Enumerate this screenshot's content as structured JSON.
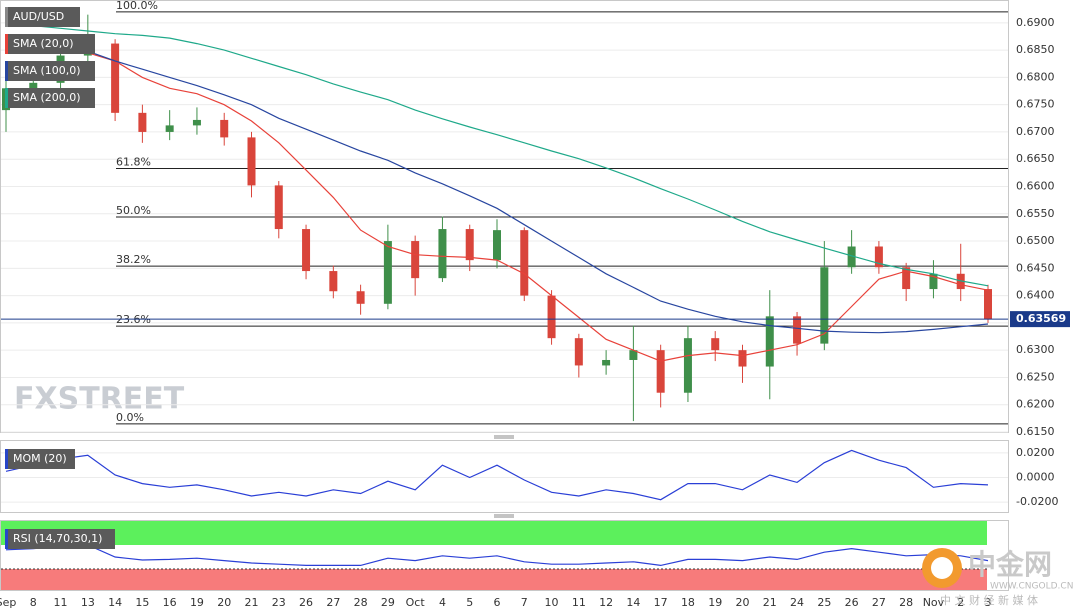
{
  "chart_data": [
    {
      "type": "candlestick",
      "title": "AUD/USD",
      "watermark": "FXSTREET",
      "categories": [
        "Sep",
        "8",
        "11",
        "13",
        "14",
        "15",
        "16",
        "19",
        "20",
        "21",
        "23",
        "26",
        "27",
        "28",
        "29",
        "Oct",
        "4",
        "5",
        "6",
        "7",
        "10",
        "11",
        "12",
        "14",
        "17",
        "18",
        "19",
        "20",
        "21",
        "24",
        "25",
        "26",
        "27",
        "28",
        "Nov",
        "2",
        "3"
      ],
      "open": [
        0.674,
        0.678,
        0.679,
        0.684,
        0.6862,
        0.6735,
        0.67,
        0.6712,
        0.6722,
        0.669,
        0.6602,
        0.6522,
        0.6445,
        0.6408,
        0.6385,
        0.65,
        0.6432,
        0.6522,
        0.6465,
        0.652,
        0.64,
        0.6322,
        0.6272,
        0.6282,
        0.63,
        0.6222,
        0.6322,
        0.63,
        0.627,
        0.6362,
        0.6312,
        0.6452,
        0.649,
        0.6452,
        0.6412,
        0.644,
        0.6412
      ],
      "high": [
        0.68,
        0.681,
        0.686,
        0.6915,
        0.687,
        0.675,
        0.674,
        0.6745,
        0.6735,
        0.67,
        0.661,
        0.653,
        0.6455,
        0.642,
        0.653,
        0.651,
        0.6545,
        0.653,
        0.654,
        0.6525,
        0.641,
        0.633,
        0.63,
        0.6345,
        0.631,
        0.6345,
        0.6335,
        0.631,
        0.641,
        0.637,
        0.65,
        0.652,
        0.65,
        0.646,
        0.6465,
        0.6495,
        0.642
      ],
      "low": [
        0.67,
        0.676,
        0.6775,
        0.682,
        0.672,
        0.668,
        0.6685,
        0.6695,
        0.6675,
        0.658,
        0.6505,
        0.643,
        0.6395,
        0.6365,
        0.6375,
        0.64,
        0.6425,
        0.6445,
        0.645,
        0.639,
        0.631,
        0.625,
        0.6255,
        0.617,
        0.6195,
        0.6205,
        0.628,
        0.624,
        0.621,
        0.629,
        0.63,
        0.644,
        0.644,
        0.639,
        0.6395,
        0.639,
        0.635
      ],
      "close": [
        0.678,
        0.679,
        0.684,
        0.6862,
        0.6735,
        0.67,
        0.6712,
        0.6722,
        0.669,
        0.6602,
        0.6522,
        0.6445,
        0.6408,
        0.6385,
        0.65,
        0.6432,
        0.6522,
        0.6465,
        0.652,
        0.64,
        0.6322,
        0.6272,
        0.6282,
        0.63,
        0.6222,
        0.6322,
        0.63,
        0.627,
        0.6362,
        0.6312,
        0.6452,
        0.649,
        0.6452,
        0.6412,
        0.644,
        0.6412,
        0.63569
      ],
      "up_color": "#3f8f4a",
      "down_color": "#d9453b",
      "series": [
        {
          "name": "SMA (20,0)",
          "color": "#e8423a",
          "values": [
            null,
            null,
            null,
            0.6845,
            0.683,
            0.68,
            0.678,
            0.677,
            0.675,
            0.672,
            0.668,
            0.663,
            0.658,
            0.652,
            0.649,
            0.6475,
            0.6472,
            0.647,
            0.6465,
            0.644,
            0.64,
            0.636,
            0.632,
            0.63,
            0.628,
            0.629,
            0.6295,
            0.629,
            0.63,
            0.631,
            0.633,
            0.638,
            0.643,
            0.6445,
            0.6435,
            0.642,
            0.641
          ]
        },
        {
          "name": "SMA (100,0)",
          "color": "#2846a0",
          "values": [
            0.686,
            0.6855,
            0.6852,
            0.6848,
            0.683,
            0.6815,
            0.68,
            0.6785,
            0.6768,
            0.675,
            0.6725,
            0.6705,
            0.6685,
            0.6665,
            0.6648,
            0.6625,
            0.6605,
            0.6583,
            0.656,
            0.653,
            0.65,
            0.647,
            0.644,
            0.6415,
            0.639,
            0.6375,
            0.6362,
            0.6352,
            0.6345,
            0.634,
            0.6335,
            0.6333,
            0.6332,
            0.6334,
            0.6338,
            0.6343,
            0.6348
          ]
        },
        {
          "name": "SMA (200,0)",
          "color": "#1fa98a",
          "values": [
            0.6904,
            0.6895,
            0.689,
            0.6885,
            0.688,
            0.6877,
            0.6872,
            0.6862,
            0.685,
            0.6835,
            0.682,
            0.6805,
            0.6788,
            0.6773,
            0.6759,
            0.674,
            0.6724,
            0.6709,
            0.6695,
            0.668,
            0.6665,
            0.6651,
            0.6634,
            0.6616,
            0.6596,
            0.6577,
            0.6557,
            0.6536,
            0.6517,
            0.6502,
            0.6487,
            0.6473,
            0.6459,
            0.6448,
            0.644,
            0.6427,
            0.6418
          ]
        }
      ],
      "fib_levels": [
        {
          "label": "100.0%",
          "value": 0.692
        },
        {
          "label": "61.8%",
          "value": 0.6633
        },
        {
          "label": "50.0%",
          "value": 0.6544
        },
        {
          "label": "38.2%",
          "value": 0.6454
        },
        {
          "label": "23.6%",
          "value": 0.6344
        },
        {
          "label": "0.0%",
          "value": 0.6165
        }
      ],
      "last_price": 0.63569,
      "ylim": [
        0.615,
        0.694
      ],
      "yticks": [
        {
          "value": 0.615,
          "label": "0.6150"
        },
        {
          "value": 0.62,
          "label": "0.6200"
        },
        {
          "value": 0.625,
          "label": "0.6250"
        },
        {
          "value": 0.63,
          "label": "0.6300"
        },
        {
          "value": 0.635,
          "label": "0.6350"
        },
        {
          "value": 0.64,
          "label": "0.6400"
        },
        {
          "value": 0.645,
          "label": "0.6450"
        },
        {
          "value": 0.65,
          "label": "0.6500"
        },
        {
          "value": 0.655,
          "label": "0.6550"
        },
        {
          "value": 0.66,
          "label": "0.6600"
        },
        {
          "value": 0.665,
          "label": "0.6650"
        },
        {
          "value": 0.67,
          "label": "0.6700"
        },
        {
          "value": 0.675,
          "label": "0.6750"
        },
        {
          "value": 0.68,
          "label": "0.6800"
        },
        {
          "value": 0.685,
          "label": "0.6850"
        },
        {
          "value": 0.69,
          "label": "0.6900"
        }
      ],
      "grid": true
    },
    {
      "type": "line",
      "title": "MOM (20)",
      "color": "#2a3fd6",
      "values": [
        0.005,
        0.01,
        0.015,
        0.018,
        0.002,
        -0.005,
        -0.008,
        -0.006,
        -0.01,
        -0.015,
        -0.012,
        -0.015,
        -0.01,
        -0.013,
        -0.003,
        -0.01,
        0.01,
        0.0,
        0.01,
        -0.002,
        -0.012,
        -0.015,
        -0.01,
        -0.013,
        -0.018,
        -0.005,
        -0.005,
        -0.01,
        0.002,
        -0.004,
        0.012,
        0.022,
        0.014,
        0.008,
        -0.008,
        -0.005,
        -0.006
      ],
      "ylim": [
        -0.028,
        0.0296
      ],
      "yticks": [
        {
          "value": -0.02,
          "label": "-0.0200"
        },
        {
          "value": 0,
          "label": "0.0000"
        },
        {
          "value": 0.02,
          "label": "0.0200"
        }
      ],
      "grid": true
    },
    {
      "type": "line",
      "title": "RSI (14,70,30,1)",
      "color": "#2a3fd6",
      "levels": [
        30,
        70
      ],
      "upper_color": "#5cf05c",
      "lower_color": "#f77b7b",
      "values": [
        62,
        64,
        68,
        70,
        50,
        45,
        46,
        48,
        44,
        40,
        38,
        36,
        36,
        36,
        48,
        44,
        52,
        48,
        52,
        42,
        38,
        38,
        40,
        42,
        36,
        46,
        46,
        44,
        50,
        46,
        58,
        64,
        58,
        52,
        54,
        52,
        44
      ],
      "ylim": [
        -5,
        110
      ]
    }
  ],
  "logo": {
    "name": "中金网",
    "tagline": "中 文 财 经 新 媒 体",
    "url": "WWW.CNGOLD.CN"
  }
}
